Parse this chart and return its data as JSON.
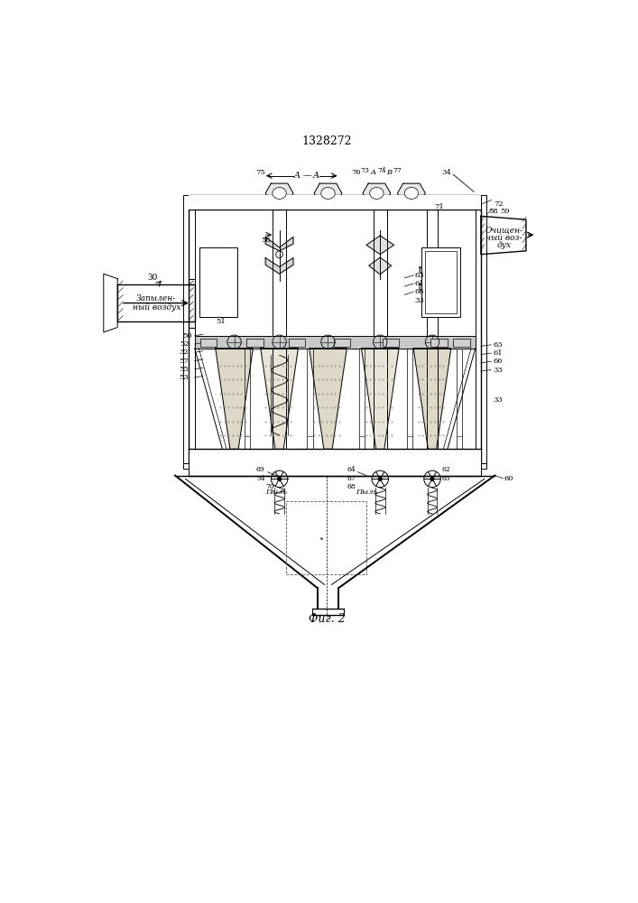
{
  "title": "1328272",
  "fig_label": "Фиг. 2",
  "bg_color": "#ffffff",
  "line_color": "#000000",
  "zapyl_text": [
    "Запылен-",
    "ный воздух"
  ],
  "ochish_text": [
    "Очищен-",
    "ный воз-",
    "дух"
  ],
  "pyl": "Пыль"
}
